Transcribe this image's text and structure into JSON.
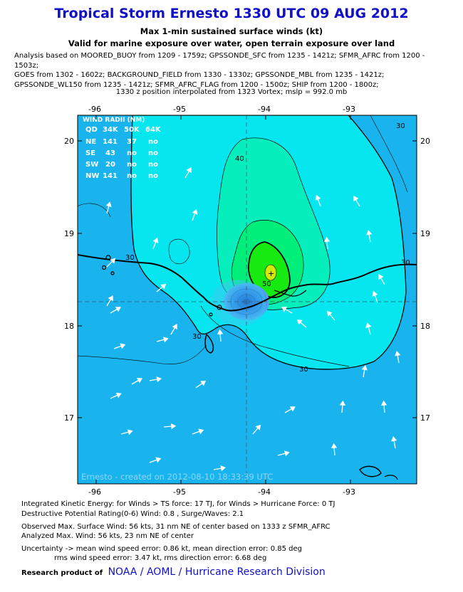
{
  "header": {
    "title": "Tropical Storm Ernesto 1330 UTC 09 AUG 2012",
    "subtitle1": "Max 1-min sustained surface winds (kt)",
    "subtitle2": "Valid for marine exposure over water, open terrain exposure over land",
    "analysis_lines": [
      "Analysis based on MOORED_BUOY from 1209 - 1759z; GPSSONDE_SFC from 1235 - 1421z; SFMR_AFRC from 1200 - 1503z;",
      "GOES from 1302 - 1602z; BACKGROUND_FIELD from 1330 - 1330z; GPSSONDE_MBL from 1235 - 1421z;",
      "GPSSONDE_WL150 from 1235 - 1421z; SFMR_AFRC_FLAG from 1200 - 1500z; SHIP from 1200 - 1800z;"
    ],
    "position_note": "1330 z position interpolated from 1323 Vortex; mslp = 992.0 mb"
  },
  "map": {
    "lon_ticks": [
      "-96",
      "-95",
      "-94",
      "-93"
    ],
    "lat_ticks": [
      "20",
      "19",
      "18",
      "17"
    ],
    "contour_labels": [
      "30",
      "40",
      "50",
      "30",
      "30",
      "30",
      "30"
    ],
    "watermark": "Ernesto - created on 2012-08-10 18:33:39 UTC",
    "colors": {
      "ocean_deep": "#19b4ee",
      "ts_outer": "#05e6ee",
      "band_40": "#05eebc",
      "band_50": "#00ee7a",
      "band_max": "#17ea10",
      "peak": "#d2ea00",
      "center": "#0a2ecc",
      "land": "#000000"
    }
  },
  "wind_radii": {
    "title": "WIND RADII (NM)",
    "header": [
      "QD",
      "34K",
      "50K",
      "64K"
    ],
    "rows": [
      [
        "NE",
        "141",
        "37",
        "no"
      ],
      [
        "SE",
        "43",
        "no",
        "no"
      ],
      [
        "SW",
        "20",
        "no",
        "no"
      ],
      [
        "NW",
        "141",
        "no",
        "no"
      ]
    ]
  },
  "footer": {
    "ike": "Integrated Kinetic Energy: for Winds > TS force: 17 TJ, for Winds > Hurricane Force: 0 TJ",
    "destructive": "Destructive Potential Rating(0-6)   Wind: 0.8 , Surge/Waves: 2.1",
    "observed": "Observed Max. Surface Wind: 56 kts, 31 nm NE of center based on 1333 z SFMR_AFRC",
    "analyzed": "Analyzed Max. Wind: 56 kts, 23 nm  NE of center",
    "uncertainty1": "Uncertainty -> mean wind speed error: 0.86 kt, mean direction error: 0.85 deg",
    "uncertainty2": "rms wind speed error: 3.47 kt, rms direction error: 6.68 deg",
    "credit_prefix": "Research product of",
    "credit_org": "NOAA  /  AOML  /  Hurricane Research Division"
  }
}
